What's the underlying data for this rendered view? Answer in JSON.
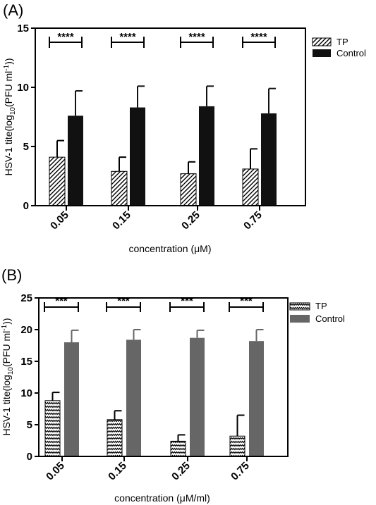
{
  "chart_data": [
    {
      "type": "bar",
      "panel_label": "(A)",
      "categories": [
        "0.05",
        "0.15",
        "0.25",
        "0.75"
      ],
      "series": [
        {
          "name": "TP",
          "values": [
            4.1,
            2.9,
            2.7,
            3.1
          ],
          "errors": [
            1.4,
            1.2,
            1.0,
            1.7
          ],
          "pattern": "hatch",
          "color": "#ffffff"
        },
        {
          "name": "Control",
          "values": [
            7.6,
            8.3,
            8.4,
            7.8
          ],
          "errors": [
            2.1,
            1.8,
            1.7,
            2.1
          ],
          "pattern": "solid",
          "color": "#111111"
        }
      ],
      "significance": [
        "****",
        "****",
        "****",
        "****"
      ],
      "ylabel_parts": {
        "prefix": "HSV-1 tite(log",
        "sub": "10",
        "middle": "(PFU ml",
        "sup": "-1",
        "suffix": "))"
      },
      "xlabel": "concentration (μM)",
      "ylim": [
        0,
        15
      ],
      "yticks": [
        "0",
        "5",
        "10",
        "15"
      ],
      "legend_placement": "right-top"
    },
    {
      "type": "bar",
      "panel_label": "(B)",
      "categories": [
        "0.05",
        "0.15",
        "0.25",
        "0.75"
      ],
      "series": [
        {
          "name": "TP",
          "values": [
            8.8,
            5.8,
            2.4,
            3.2
          ],
          "errors": [
            1.3,
            1.4,
            1.0,
            3.3
          ],
          "pattern": "zigzag",
          "color": "#ffffff"
        },
        {
          "name": "Control",
          "values": [
            18.0,
            18.4,
            18.7,
            18.2
          ],
          "errors": [
            1.9,
            1.6,
            1.2,
            1.8
          ],
          "pattern": "solid",
          "color": "#666666"
        }
      ],
      "significance": [
        "***",
        "***",
        "***",
        "***"
      ],
      "ylabel_parts": {
        "prefix": "HSV-1 tite(log",
        "sub": "10",
        "middle": "(PFU ml",
        "sup": "-1",
        "suffix": "))"
      },
      "xlabel": "concentration (μM/ml)",
      "ylim": [
        0,
        25
      ],
      "yticks": [
        "0",
        "5",
        "10",
        "15",
        "20",
        "25"
      ],
      "legend_placement": "right-top"
    }
  ]
}
